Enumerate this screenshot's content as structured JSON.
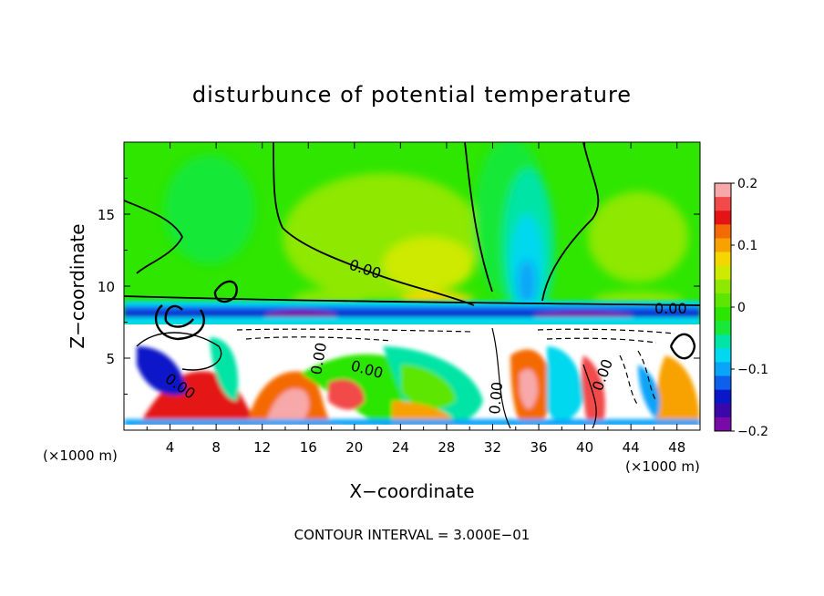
{
  "chart_data": {
    "type": "heatmap",
    "title": "disturbunce of potential temperature",
    "xlabel": "X−coordinate",
    "ylabel": "Z−coordinate",
    "x_unit": "(×1000 m)",
    "y_unit": "(×1000 m)",
    "xlim": [
      0,
      50
    ],
    "ylim": [
      0,
      20
    ],
    "x_ticks": [
      4,
      8,
      12,
      16,
      20,
      24,
      28,
      32,
      36,
      40,
      44,
      48
    ],
    "y_ticks": [
      5,
      10,
      15
    ],
    "colorbar": {
      "range": [
        -0.2,
        0.2
      ],
      "ticks": [
        0.2,
        0.1,
        0,
        -0.1,
        -0.2
      ],
      "tick_labels": [
        "0.2",
        "0.1",
        "0",
        "−0.1",
        "−0.2"
      ],
      "colors": [
        "#f7a8a8",
        "#f24a4a",
        "#e41414",
        "#f46a06",
        "#f7a200",
        "#f4d600",
        "#cdea00",
        "#8ee800",
        "#5ce600",
        "#2ae600",
        "#18e838",
        "#00e4a6",
        "#00d8f0",
        "#0aa4f8",
        "#0c60ec",
        "#0818c8",
        "#3a08a8",
        "#7a0aa8"
      ]
    },
    "contour_labels": [
      "0.00",
      "0.00",
      "0.00",
      "0.00",
      "0.00",
      "0.00",
      "0.00"
    ],
    "footer": "CONTOUR INTERVAL = 3.000E−01"
  }
}
